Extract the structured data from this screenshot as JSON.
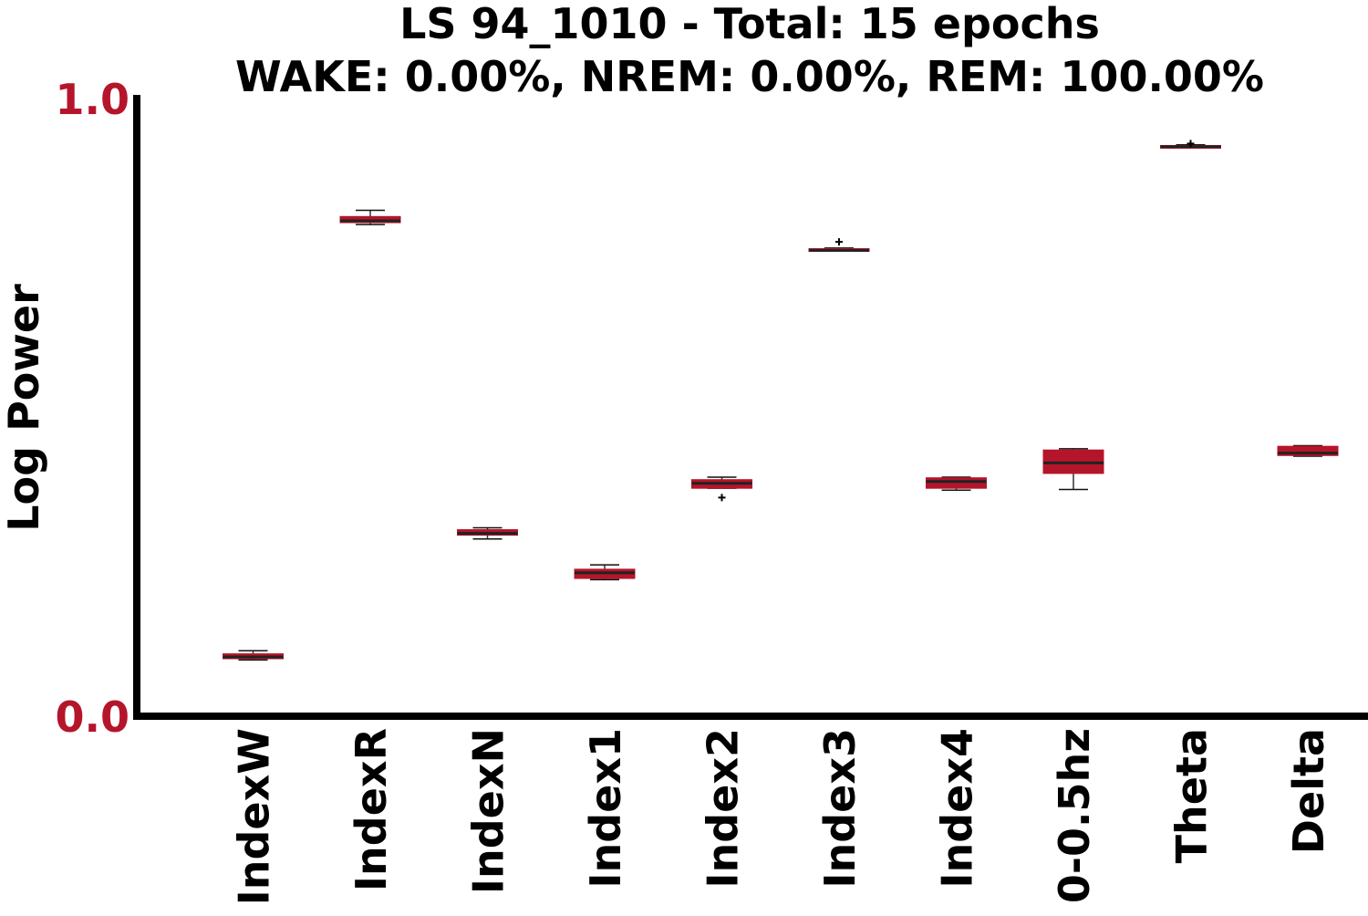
{
  "chart_data": {
    "type": "box",
    "title_line1": "LS 94_1010 - Total: 15 epochs",
    "title_line2": "WAKE: 0.00%, NREM: 0.00%, REM: 100.00%",
    "ylabel": "Log Power",
    "xlabel": "",
    "ylim": [
      0.0,
      1.0
    ],
    "yticks": [
      "0.0",
      "1.0"
    ],
    "grid": false,
    "colors": {
      "box": "#b5152b",
      "ytick": "#b5152b",
      "text": "#000000",
      "axis": "#000000"
    },
    "categories": [
      "IndexW",
      "IndexR",
      "IndexN",
      "Index1",
      "Index2",
      "Index3",
      "Index4",
      "0-0.5hz",
      "Theta",
      "Delta"
    ],
    "boxes": [
      {
        "name": "IndexW",
        "whislo": 0.091,
        "q1": 0.093,
        "med": 0.096,
        "q3": 0.101,
        "whishi": 0.106,
        "outliers": []
      },
      {
        "name": "IndexR",
        "whislo": 0.796,
        "q1": 0.799,
        "med": 0.802,
        "q3": 0.809,
        "whishi": 0.819,
        "outliers": []
      },
      {
        "name": "IndexN",
        "whislo": 0.287,
        "q1": 0.293,
        "med": 0.296,
        "q3": 0.302,
        "whishi": 0.305,
        "outliers": []
      },
      {
        "name": "Index1",
        "whislo": 0.221,
        "q1": 0.223,
        "med": 0.232,
        "q3": 0.238,
        "whishi": 0.245,
        "outliers": []
      },
      {
        "name": "Index2",
        "whislo": 0.369,
        "q1": 0.369,
        "med": 0.377,
        "q3": 0.383,
        "whishi": 0.387,
        "outliers": [
          0.354
        ]
      },
      {
        "name": "Index3",
        "whislo": 0.753,
        "q1": 0.753,
        "med": 0.754,
        "q3": 0.757,
        "whishi": 0.758,
        "outliers": [
          0.768
        ]
      },
      {
        "name": "Index4",
        "whislo": 0.366,
        "q1": 0.369,
        "med": 0.38,
        "q3": 0.386,
        "whishi": 0.387,
        "outliers": []
      },
      {
        "name": "0-0.5hz",
        "whislo": 0.367,
        "q1": 0.393,
        "med": 0.41,
        "q3": 0.431,
        "whishi": 0.433,
        "outliers": []
      },
      {
        "name": "Theta",
        "whislo": 0.921,
        "q1": 0.921,
        "med": 0.922,
        "q3": 0.924,
        "whishi": 0.925,
        "outliers": [
          0.927
        ]
      },
      {
        "name": "Delta",
        "whislo": 0.421,
        "q1": 0.422,
        "med": 0.426,
        "q3": 0.437,
        "whishi": 0.438,
        "outliers": []
      }
    ]
  }
}
